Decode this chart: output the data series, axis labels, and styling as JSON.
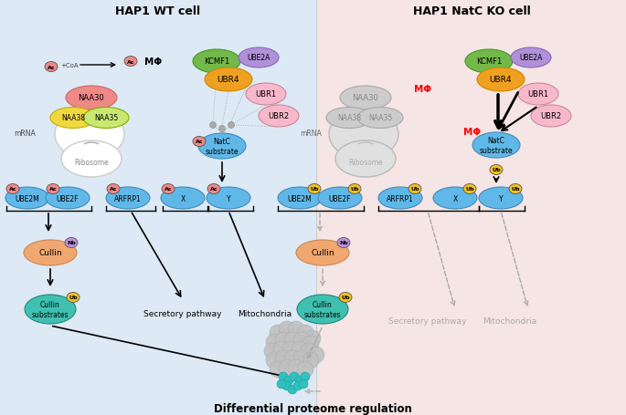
{
  "title_left": "HAP1 WT cell",
  "title_right": "HAP1 NatC KO cell",
  "bottom_label": "Differential proteome regulation",
  "bg_left": "#ddeaf5",
  "bg_right": "#f5e5e5",
  "colors": {
    "naa30": "#f08888",
    "naa38": "#f0d840",
    "naa35": "#c8e870",
    "kcmf1": "#72b84a",
    "ube2a": "#b090d8",
    "ubr4": "#f0a020",
    "ubr1": "#f8b8cc",
    "ubr2": "#f8b8cc",
    "natc_sub_blue": "#60b8e8",
    "protein_blue": "#60b8e8",
    "cullin": "#f0a870",
    "cullin_sub": "#40c0b0",
    "nb_tag": "#c090e0",
    "ub_tag": "#f0c020",
    "ac_tag": "#f08888",
    "gray": "#b8b8b8",
    "teal": "#30c0c0"
  }
}
